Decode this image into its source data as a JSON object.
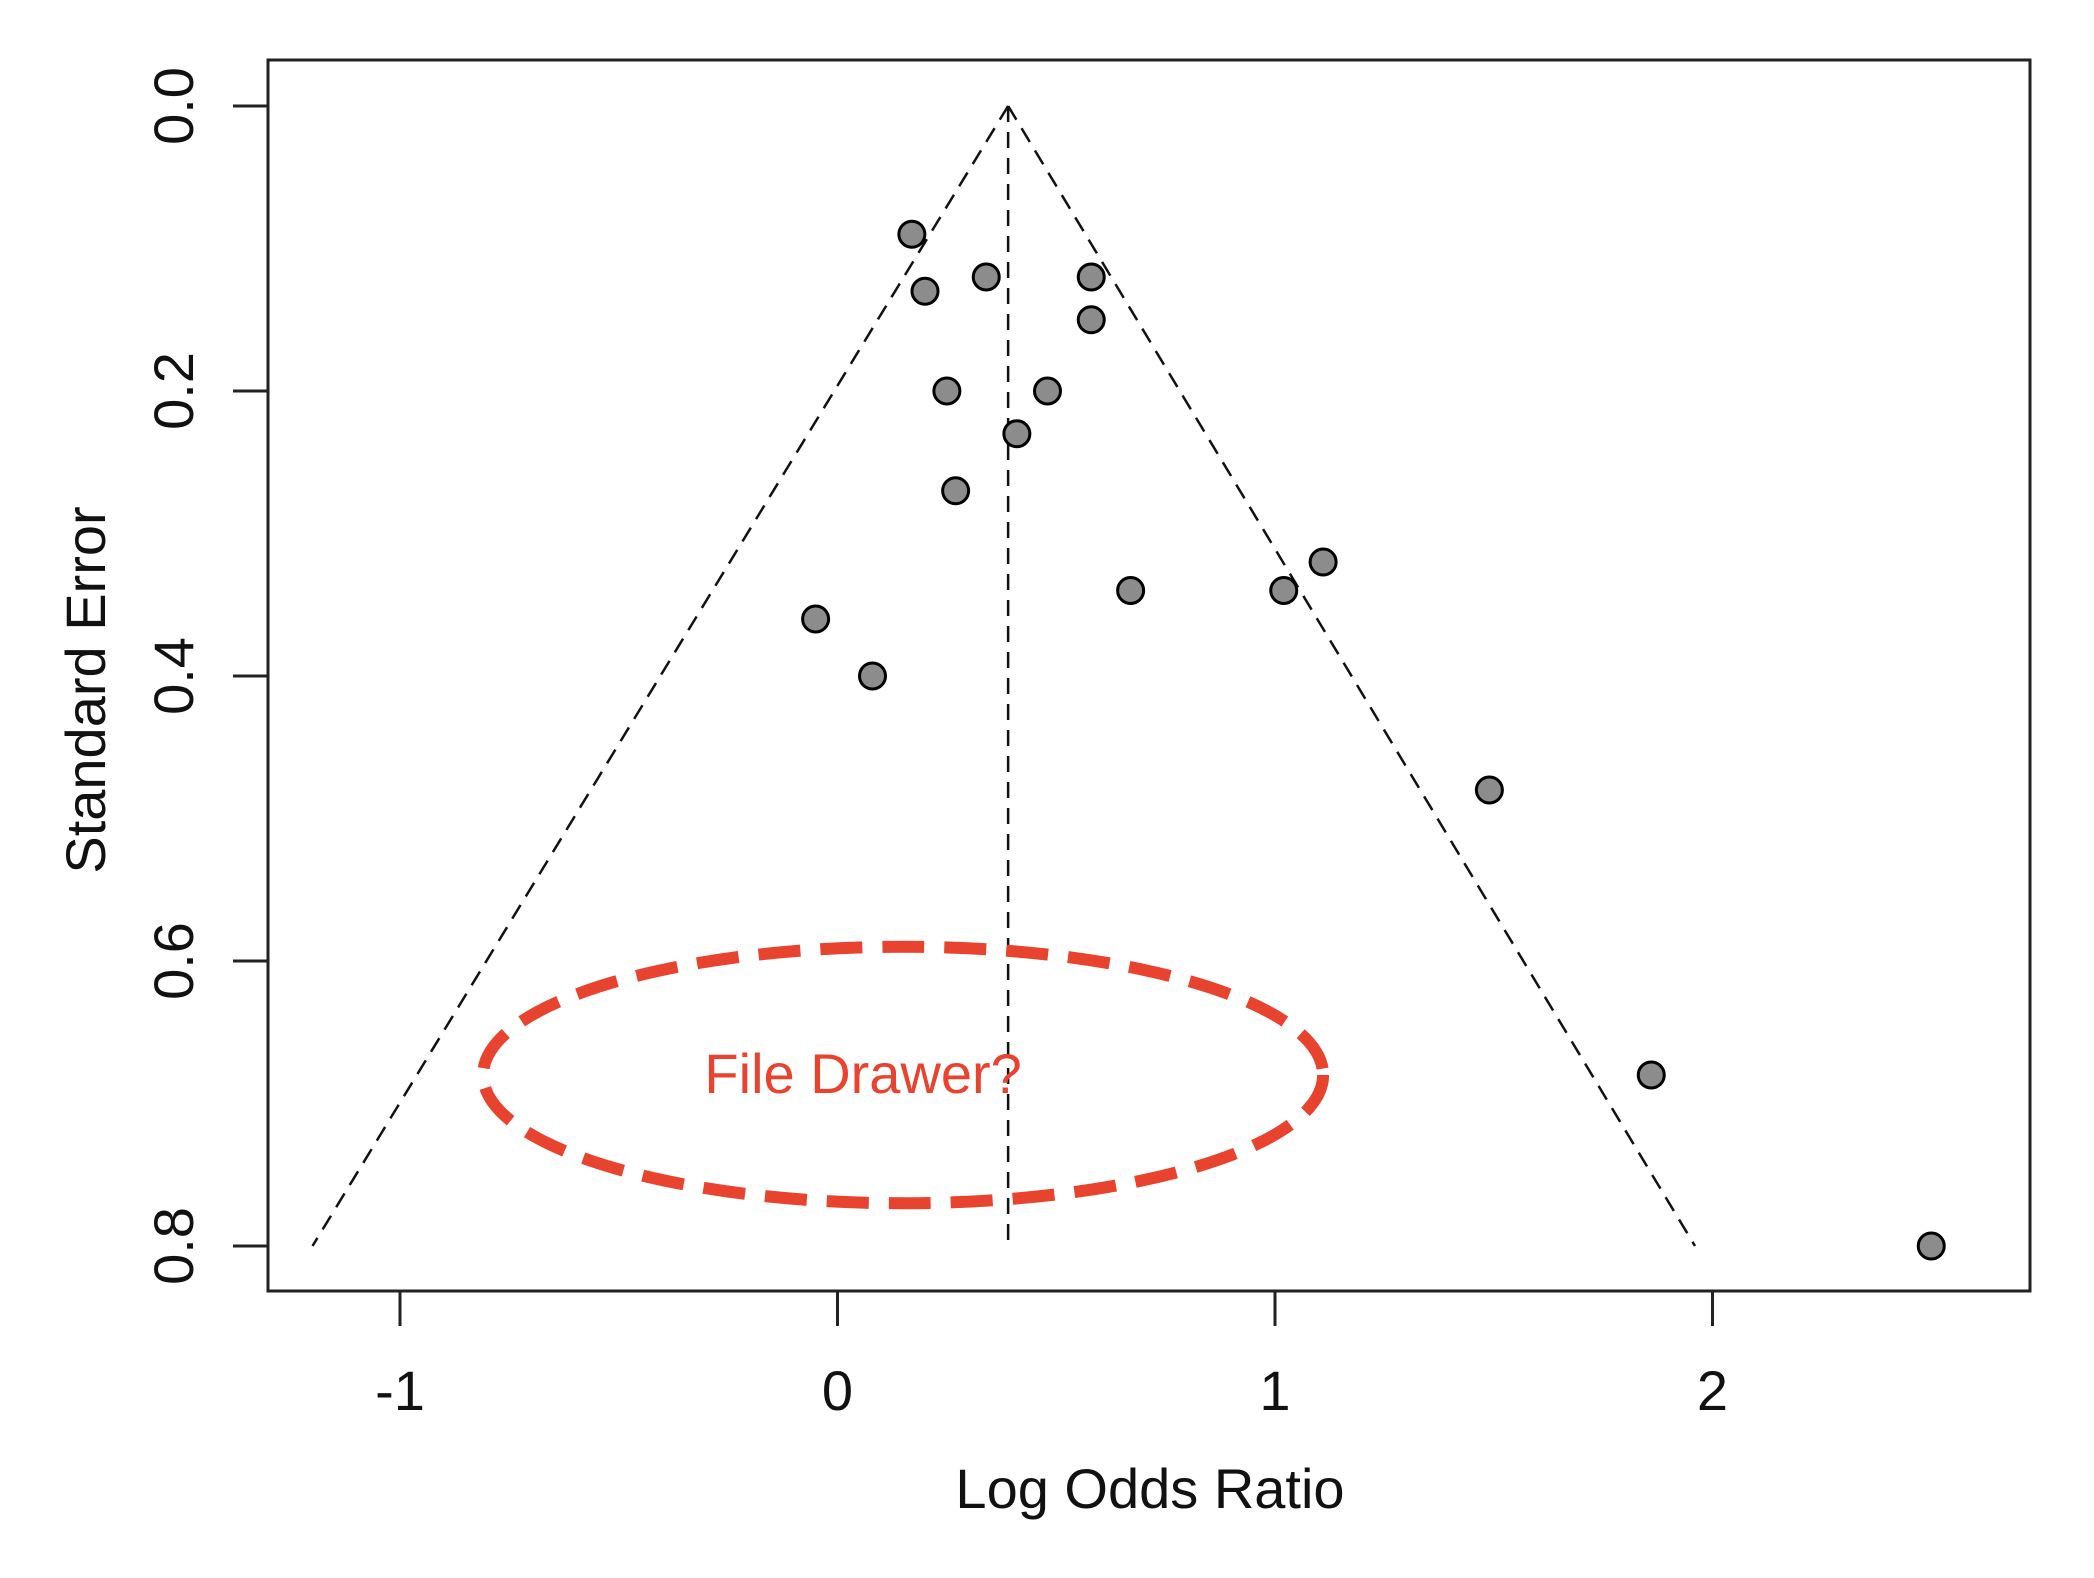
{
  "chart_data": {
    "type": "scatter",
    "title": "",
    "xlabel": "Log Odds Ratio",
    "ylabel": "Standard Error",
    "xlim": [
      -1.3,
      2.7
    ],
    "ylim": [
      0.8,
      0.0
    ],
    "y_inverted": true,
    "x_ticks": [
      -1,
      0,
      1,
      2
    ],
    "x_tick_labels": [
      "-1",
      "0",
      "1",
      "2"
    ],
    "y_ticks": [
      0.0,
      0.2,
      0.4,
      0.6,
      0.8
    ],
    "y_tick_labels": [
      "0.0",
      "0.2",
      "0.4",
      "0.6",
      "0.8"
    ],
    "grid": false,
    "legend": "none",
    "point_color": "#8c8c8c",
    "point_outline_color": "#000000",
    "funnel": {
      "center_x": 0.39,
      "apex_se": 0.0,
      "bottom_se": 0.8,
      "left_bottom_x": -1.2,
      "right_bottom_x": 1.96,
      "line_style": "dashed"
    },
    "points": [
      {
        "x": 0.17,
        "y": 0.09
      },
      {
        "x": 0.2,
        "y": 0.13
      },
      {
        "x": 0.34,
        "y": 0.12
      },
      {
        "x": 0.58,
        "y": 0.12
      },
      {
        "x": 0.58,
        "y": 0.15
      },
      {
        "x": 0.25,
        "y": 0.2
      },
      {
        "x": 0.48,
        "y": 0.2
      },
      {
        "x": 0.41,
        "y": 0.23
      },
      {
        "x": 0.27,
        "y": 0.27
      },
      {
        "x": 0.67,
        "y": 0.34
      },
      {
        "x": 1.02,
        "y": 0.34
      },
      {
        "x": 1.11,
        "y": 0.32
      },
      {
        "x": -0.05,
        "y": 0.36
      },
      {
        "x": 0.08,
        "y": 0.4
      },
      {
        "x": 1.49,
        "y": 0.48
      },
      {
        "x": 1.86,
        "y": 0.68
      },
      {
        "x": 2.5,
        "y": 0.8
      }
    ],
    "annotation": {
      "text": "File Drawer?",
      "color": "#e8432e",
      "ellipse_center": [
        0.15,
        0.68
      ],
      "ellipse_radii": [
        0.96,
        0.09
      ],
      "style": "dashed"
    }
  }
}
